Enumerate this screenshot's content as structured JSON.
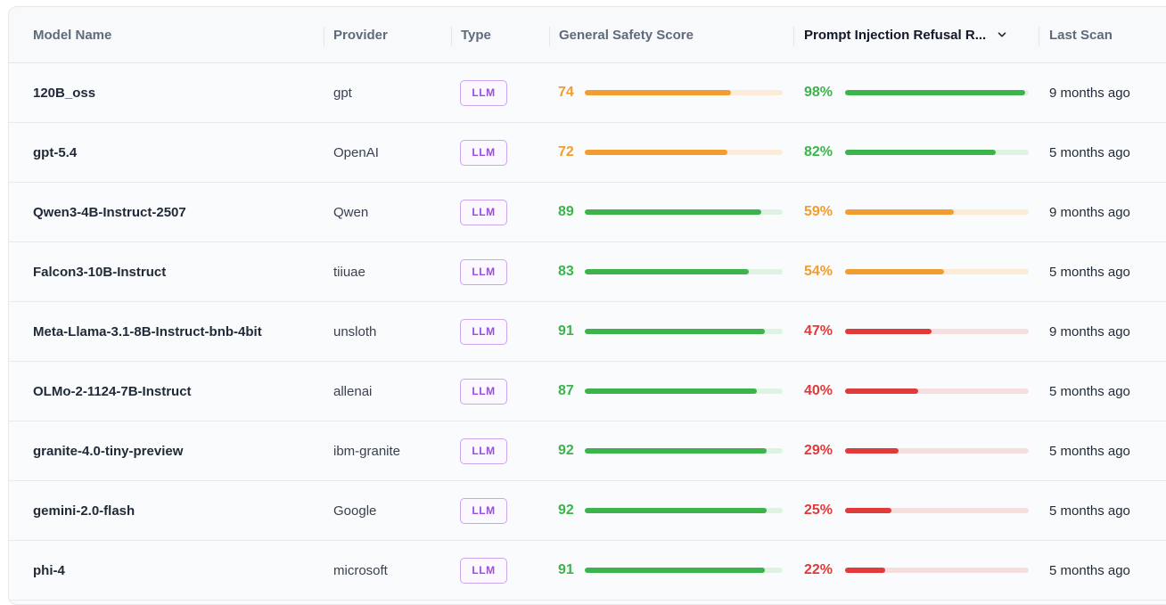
{
  "table": {
    "columns": [
      {
        "key": "model",
        "label": "Model Name"
      },
      {
        "key": "provider",
        "label": "Provider"
      },
      {
        "key": "type",
        "label": "Type"
      },
      {
        "key": "gss",
        "label": "General Safety Score"
      },
      {
        "key": "pir",
        "label": "Prompt Injection Refusal R..."
      },
      {
        "key": "last",
        "label": "Last Scan"
      }
    ],
    "sort_icon": "chevron-down-icon",
    "rows": [
      {
        "model": "120B_oss",
        "provider": "gpt",
        "type": "LLM",
        "gss": 74,
        "gss_label": "74",
        "pir": 98,
        "pir_label": "98%",
        "last": "9 months ago"
      },
      {
        "model": "gpt-5.4",
        "provider": "OpenAI",
        "type": "LLM",
        "gss": 72,
        "gss_label": "72",
        "pir": 82,
        "pir_label": "82%",
        "last": "5 months ago"
      },
      {
        "model": "Qwen3-4B-Instruct-2507",
        "provider": "Qwen",
        "type": "LLM",
        "gss": 89,
        "gss_label": "89",
        "pir": 59,
        "pir_label": "59%",
        "last": "9 months ago"
      },
      {
        "model": "Falcon3-10B-Instruct",
        "provider": "tiiuae",
        "type": "LLM",
        "gss": 83,
        "gss_label": "83",
        "pir": 54,
        "pir_label": "54%",
        "last": "5 months ago"
      },
      {
        "model": "Meta-Llama-3.1-8B-Instruct-bnb-4bit",
        "provider": "unsloth",
        "type": "LLM",
        "gss": 91,
        "gss_label": "91",
        "pir": 47,
        "pir_label": "47%",
        "last": "9 months ago"
      },
      {
        "model": "OLMo-2-1124-7B-Instruct",
        "provider": "allenai",
        "type": "LLM",
        "gss": 87,
        "gss_label": "87",
        "pir": 40,
        "pir_label": "40%",
        "last": "5 months ago"
      },
      {
        "model": "granite-4.0-tiny-preview",
        "provider": "ibm-granite",
        "type": "LLM",
        "gss": 92,
        "gss_label": "92",
        "pir": 29,
        "pir_label": "29%",
        "last": "5 months ago"
      },
      {
        "model": "gemini-2.0-flash",
        "provider": "Google",
        "type": "LLM",
        "gss": 92,
        "gss_label": "92",
        "pir": 25,
        "pir_label": "25%",
        "last": "5 months ago"
      },
      {
        "model": "phi-4",
        "provider": "microsoft",
        "type": "LLM",
        "gss": 91,
        "gss_label": "91",
        "pir": 22,
        "pir_label": "22%",
        "last": "5 months ago"
      }
    ]
  },
  "colors": {
    "green": "#3cb44b",
    "green_track": "#dff3e2",
    "orange": "#f29d2f",
    "orange_track": "#fcebd7",
    "red": "#e03a3a",
    "red_track": "#f7dede",
    "badge": "#9b4ddb"
  }
}
